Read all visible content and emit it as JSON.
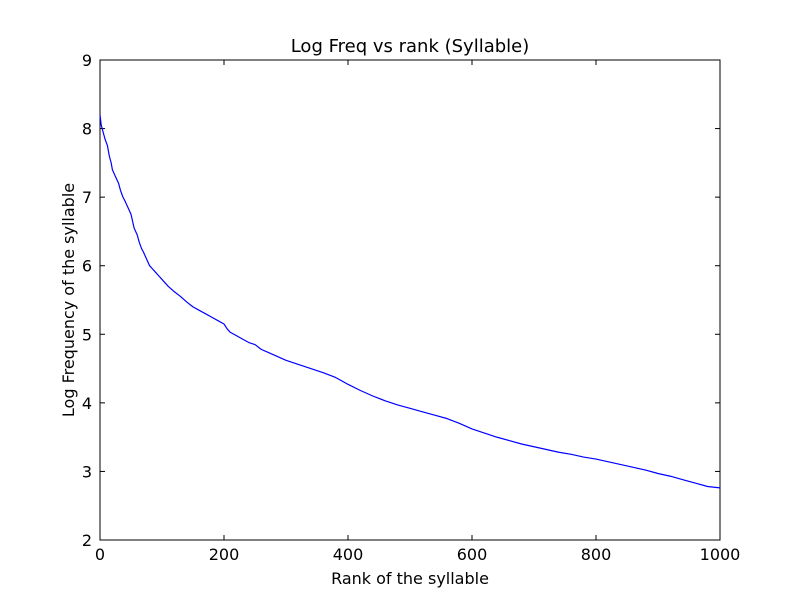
{
  "chart_data": {
    "type": "line",
    "title": "Log Freq vs rank (Syllable)",
    "xlabel": "Rank of the syllable",
    "ylabel": "Log Frequency of the syllable",
    "xlim": [
      0,
      1000
    ],
    "ylim": [
      2,
      9
    ],
    "xticks": [
      0,
      200,
      400,
      600,
      800,
      1000
    ],
    "yticks": [
      2,
      3,
      4,
      5,
      6,
      7,
      8,
      9
    ],
    "grid": false,
    "line_color": "#0000ff",
    "series": [
      {
        "x": [
          0,
          2,
          5,
          8,
          12,
          15,
          18,
          20,
          25,
          30,
          33,
          37,
          40,
          45,
          50,
          55,
          60,
          63,
          67,
          70,
          75,
          80,
          85,
          90,
          95,
          100,
          110,
          120,
          130,
          140,
          150,
          160,
          170,
          180,
          190,
          200,
          205,
          210,
          220,
          230,
          240,
          250,
          260,
          270,
          280,
          300,
          320,
          340,
          360,
          380,
          400,
          420,
          440,
          460,
          480,
          500,
          520,
          540,
          560,
          580,
          600,
          620,
          640,
          660,
          680,
          700,
          720,
          740,
          760,
          780,
          800,
          820,
          840,
          860,
          880,
          900,
          920,
          940,
          960,
          980,
          1000
        ],
        "y": [
          8.2,
          8.05,
          7.95,
          7.85,
          7.75,
          7.6,
          7.5,
          7.4,
          7.3,
          7.2,
          7.1,
          7.0,
          6.95,
          6.85,
          6.75,
          6.55,
          6.45,
          6.35,
          6.25,
          6.2,
          6.1,
          6.0,
          5.95,
          5.9,
          5.85,
          5.8,
          5.7,
          5.62,
          5.55,
          5.47,
          5.4,
          5.35,
          5.3,
          5.25,
          5.2,
          5.15,
          5.08,
          5.03,
          4.98,
          4.93,
          4.88,
          4.85,
          4.78,
          4.74,
          4.7,
          4.62,
          4.56,
          4.5,
          4.44,
          4.37,
          4.27,
          4.18,
          4.1,
          4.03,
          3.97,
          3.92,
          3.87,
          3.82,
          3.77,
          3.7,
          3.62,
          3.56,
          3.5,
          3.45,
          3.4,
          3.36,
          3.32,
          3.28,
          3.25,
          3.21,
          3.18,
          3.14,
          3.1,
          3.06,
          3.02,
          2.97,
          2.93,
          2.88,
          2.83,
          2.78,
          2.76
        ]
      }
    ]
  }
}
